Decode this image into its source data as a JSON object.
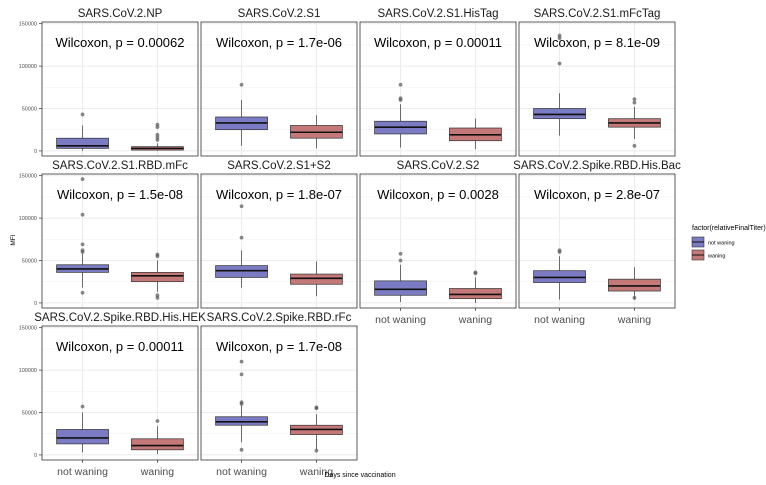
{
  "chart_data": {
    "type": "boxplot",
    "ylabel": "MFI",
    "xlabel": "Days since vaccination",
    "categories": [
      "not waning",
      "waning"
    ],
    "yticks": [
      0,
      50000,
      100000,
      150000
    ],
    "ylim": [
      -6000,
      152000
    ],
    "grid": true,
    "legend": {
      "title": "factor(relativeFinalTiter)",
      "position": "right",
      "entries": [
        {
          "label": "not waning",
          "color": "#7b7bc4"
        },
        {
          "label": "waning",
          "color": "#c47878"
        }
      ]
    },
    "panels": [
      {
        "title": "SARS.CoV.2.NP",
        "annotation": "Wilcoxon, p = 0.00062",
        "boxes": [
          {
            "q1": 3000,
            "median": 6000,
            "q3": 15000,
            "whisker_low": 0,
            "whisker_high": 30000,
            "outliers": [
              43000
            ]
          },
          {
            "q1": 1000,
            "median": 3000,
            "q3": 5000,
            "whisker_low": 0,
            "whisker_high": 9000,
            "outliers": [
              13000,
              16000,
              19000,
              28000,
              31000
            ]
          }
        ]
      },
      {
        "title": "SARS.CoV.2.S1",
        "annotation": "Wilcoxon, p = 1.7e-06",
        "boxes": [
          {
            "q1": 25000,
            "median": 33000,
            "q3": 40000,
            "whisker_low": 6000,
            "whisker_high": 60000,
            "outliers": [
              78000
            ]
          },
          {
            "q1": 15000,
            "median": 22000,
            "q3": 30000,
            "whisker_low": 3000,
            "whisker_high": 42000,
            "outliers": []
          }
        ]
      },
      {
        "title": "SARS.CoV.2.S1.HisTag",
        "annotation": "Wilcoxon, p = 0.00011",
        "boxes": [
          {
            "q1": 20000,
            "median": 28000,
            "q3": 35000,
            "whisker_low": 4000,
            "whisker_high": 55000,
            "outliers": [
              60000,
              62000,
              78000
            ]
          },
          {
            "q1": 12000,
            "median": 19000,
            "q3": 27000,
            "whisker_low": 2000,
            "whisker_high": 38000,
            "outliers": []
          }
        ]
      },
      {
        "title": "SARS.CoV.2.S1.mFcTag",
        "annotation": "Wilcoxon, p = 8.1e-09",
        "boxes": [
          {
            "q1": 38000,
            "median": 43000,
            "q3": 50000,
            "whisker_low": 18000,
            "whisker_high": 68000,
            "outliers": [
              103000,
              133000,
              136000
            ]
          },
          {
            "q1": 28000,
            "median": 33000,
            "q3": 38000,
            "whisker_low": 14000,
            "whisker_high": 52000,
            "outliers": [
              6000,
              57000,
              61000
            ]
          }
        ]
      },
      {
        "title": "SARS.CoV.2.S1.RBD.mFc",
        "annotation": "Wilcoxon, p = 1.5e-08",
        "boxes": [
          {
            "q1": 36000,
            "median": 40000,
            "q3": 45000,
            "whisker_low": 18000,
            "whisker_high": 58000,
            "outliers": [
              12000,
              60000,
              62000,
              69000,
              104000,
              146000
            ]
          },
          {
            "q1": 25000,
            "median": 32000,
            "q3": 36000,
            "whisker_low": 13000,
            "whisker_high": 50000,
            "outliers": [
              6000,
              9000,
              55000,
              57000
            ]
          }
        ]
      },
      {
        "title": "SARS.CoV.2.S1+S2",
        "annotation": "Wilcoxon, p = 1.8e-07",
        "boxes": [
          {
            "q1": 30000,
            "median": 38000,
            "q3": 44000,
            "whisker_low": 18000,
            "whisker_high": 62000,
            "outliers": [
              77000,
              114000
            ]
          },
          {
            "q1": 22000,
            "median": 29000,
            "q3": 34000,
            "whisker_low": 8000,
            "whisker_high": 49000,
            "outliers": []
          }
        ]
      },
      {
        "title": "SARS.CoV.2.S2",
        "annotation": "Wilcoxon, p = 0.0028",
        "boxes": [
          {
            "q1": 9000,
            "median": 16000,
            "q3": 26000,
            "whisker_low": 1000,
            "whisker_high": 45000,
            "outliers": [
              50000,
              58000
            ]
          },
          {
            "q1": 5000,
            "median": 10000,
            "q3": 17000,
            "whisker_low": 0,
            "whisker_high": 30000,
            "outliers": [
              35000,
              36000
            ]
          }
        ]
      },
      {
        "title": "SARS.CoV.2.Spike.RBD.His.Bac",
        "annotation": "Wilcoxon, p = 2.8e-07",
        "boxes": [
          {
            "q1": 24000,
            "median": 30000,
            "q3": 38000,
            "whisker_low": 4000,
            "whisker_high": 55000,
            "outliers": [
              60000,
              62000
            ]
          },
          {
            "q1": 14000,
            "median": 20000,
            "q3": 28000,
            "whisker_low": 4000,
            "whisker_high": 42000,
            "outliers": [
              6000
            ]
          }
        ]
      },
      {
        "title": "SARS.CoV.2.Spike.RBD.His.HEK",
        "annotation": "Wilcoxon, p = 0.00011",
        "boxes": [
          {
            "q1": 13000,
            "median": 20000,
            "q3": 30000,
            "whisker_low": 3000,
            "whisker_high": 50000,
            "outliers": [
              57000
            ]
          },
          {
            "q1": 6000,
            "median": 11000,
            "q3": 19000,
            "whisker_low": 1000,
            "whisker_high": 34000,
            "outliers": [
              40000
            ]
          }
        ]
      },
      {
        "title": "SARS.CoV.2.Spike.RBD.rFc",
        "annotation": "Wilcoxon, p = 1.7e-08",
        "boxes": [
          {
            "q1": 35000,
            "median": 39000,
            "q3": 45000,
            "whisker_low": 15000,
            "whisker_high": 58000,
            "outliers": [
              6000,
              60000,
              62000,
              95000,
              110000
            ]
          },
          {
            "q1": 24000,
            "median": 30000,
            "q3": 35000,
            "whisker_low": 6000,
            "whisker_high": 48000,
            "outliers": [
              5000,
              55000,
              56000
            ]
          }
        ]
      }
    ]
  }
}
